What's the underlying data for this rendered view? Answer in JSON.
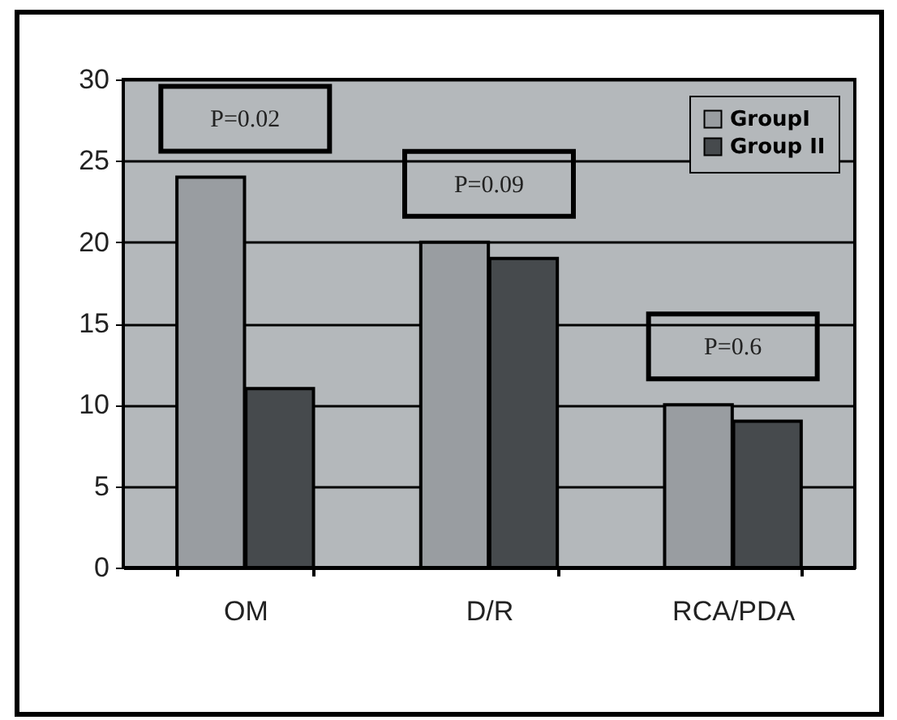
{
  "chart_data": {
    "type": "bar",
    "categories": [
      "OM",
      "D/R",
      "RCA/PDA"
    ],
    "series": [
      {
        "name": "GroupI",
        "color": "#999da1",
        "values": [
          24,
          20,
          10
        ]
      },
      {
        "name": "Group II",
        "color": "#464a4d",
        "values": [
          11,
          19,
          9
        ]
      }
    ],
    "ylim": [
      0,
      30
    ],
    "yticks": [
      0,
      5,
      10,
      15,
      20,
      25,
      30
    ],
    "grid": "y",
    "legend": "top right",
    "annotations": [
      "P=0.02",
      "P=0.09",
      "P=0.6"
    ]
  }
}
